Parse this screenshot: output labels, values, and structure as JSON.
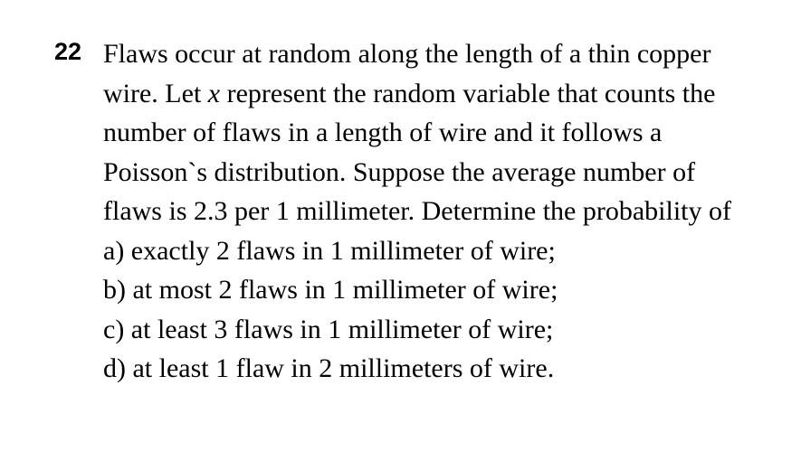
{
  "problem": {
    "number": "22",
    "intro_part1": "Flaws occur at random along the length of a thin copper wire. Let ",
    "variable": "x",
    "intro_part2": " represent the random variable that counts the number of flaws in a length of wire and it follows a Poisson`s distribution. Suppose the average number of flaws is 2.3 per 1 millimeter. Determine the probability of",
    "items": {
      "a": "a) exactly 2 flaws in 1 millimeter of wire;",
      "b": "b) at most 2 flaws in 1 millimeter of wire;",
      "c": "c) at least 3 flaws in 1 millimeter of wire;",
      "d": "d) at least 1 flaw in 2 millimeters of wire."
    }
  },
  "style": {
    "background_color": "#ffffff",
    "text_color": "#000000",
    "number_font": "Arial, Helvetica, sans-serif",
    "body_font": "'Times New Roman', Times, serif",
    "number_fontsize": 27,
    "body_fontsize": 30,
    "line_height": 1.45
  }
}
